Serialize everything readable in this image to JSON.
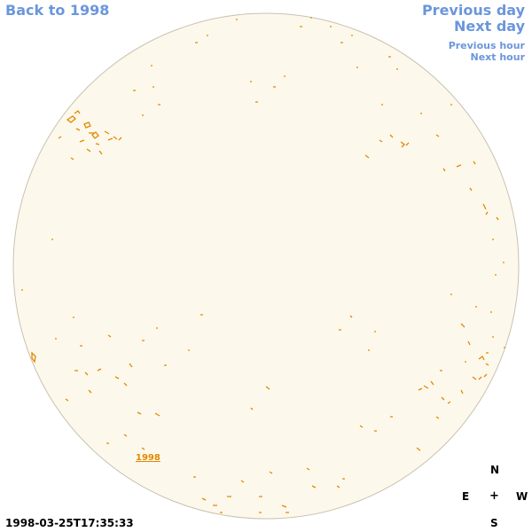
{
  "nav": {
    "back": "Back to 1998",
    "previous_day": "Previous day",
    "next_day": "Next day",
    "previous_hour": "Previous hour",
    "next_hour": "Next hour"
  },
  "year_link": "1998",
  "compass": {
    "n": "N",
    "e": "E",
    "center": "+",
    "w": "W",
    "s": "S"
  },
  "timestamp": "1998-03-25T17:35:33",
  "colors": {
    "link": "#6b96dc",
    "disk_fill": "#fdf8ec",
    "disk_border": "#c9c2ae",
    "contour": "#e08a00"
  }
}
